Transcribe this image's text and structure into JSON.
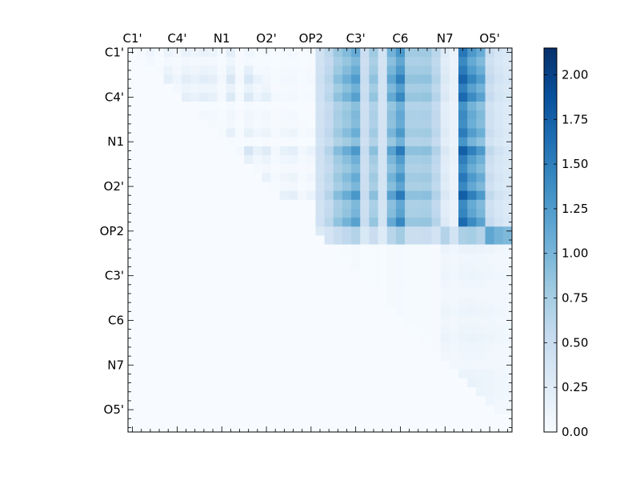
{
  "chart_data": {
    "type": "heatmap",
    "title": "",
    "xlabel": "",
    "ylabel": "",
    "grid": false,
    "n": 43,
    "labels": [
      "C1'",
      "C4'",
      "N1",
      "O2'",
      "OP2",
      "C3'",
      "C6",
      "N7",
      "O5'"
    ],
    "label_indices": [
      0,
      5,
      10,
      15,
      20,
      25,
      30,
      35,
      40
    ],
    "colorbar": {
      "min": 0.0,
      "max": 2.15,
      "ticks": [
        "0.00",
        "0.25",
        "0.50",
        "0.75",
        "1.00",
        "1.25",
        "1.50",
        "1.75",
        "2.00"
      ],
      "colormap": [
        "#f7fbff",
        "#deebf7",
        "#c6dbef",
        "#9ecae1",
        "#6baed6",
        "#4292c6",
        "#2171b5",
        "#08519c",
        "#08306b"
      ]
    },
    "blocks": [
      {
        "rows": [
          0,
          19
        ],
        "cols": [
          21,
          42
        ],
        "approx_value_range": [
          0.3,
          2.1
        ]
      },
      {
        "rows": [
          17,
          21
        ],
        "cols": [
          21,
          42
        ],
        "approx_value_range": [
          0.1,
          1.5
        ]
      },
      {
        "rows": [
          0,
          16
        ],
        "cols": [
          1,
          20
        ],
        "approx_value_range": [
          0.0,
          0.6
        ]
      },
      {
        "rows": [
          22,
          40
        ],
        "cols": [
          24,
          42
        ],
        "approx_value_range": [
          0.0,
          0.2
        ]
      }
    ]
  }
}
